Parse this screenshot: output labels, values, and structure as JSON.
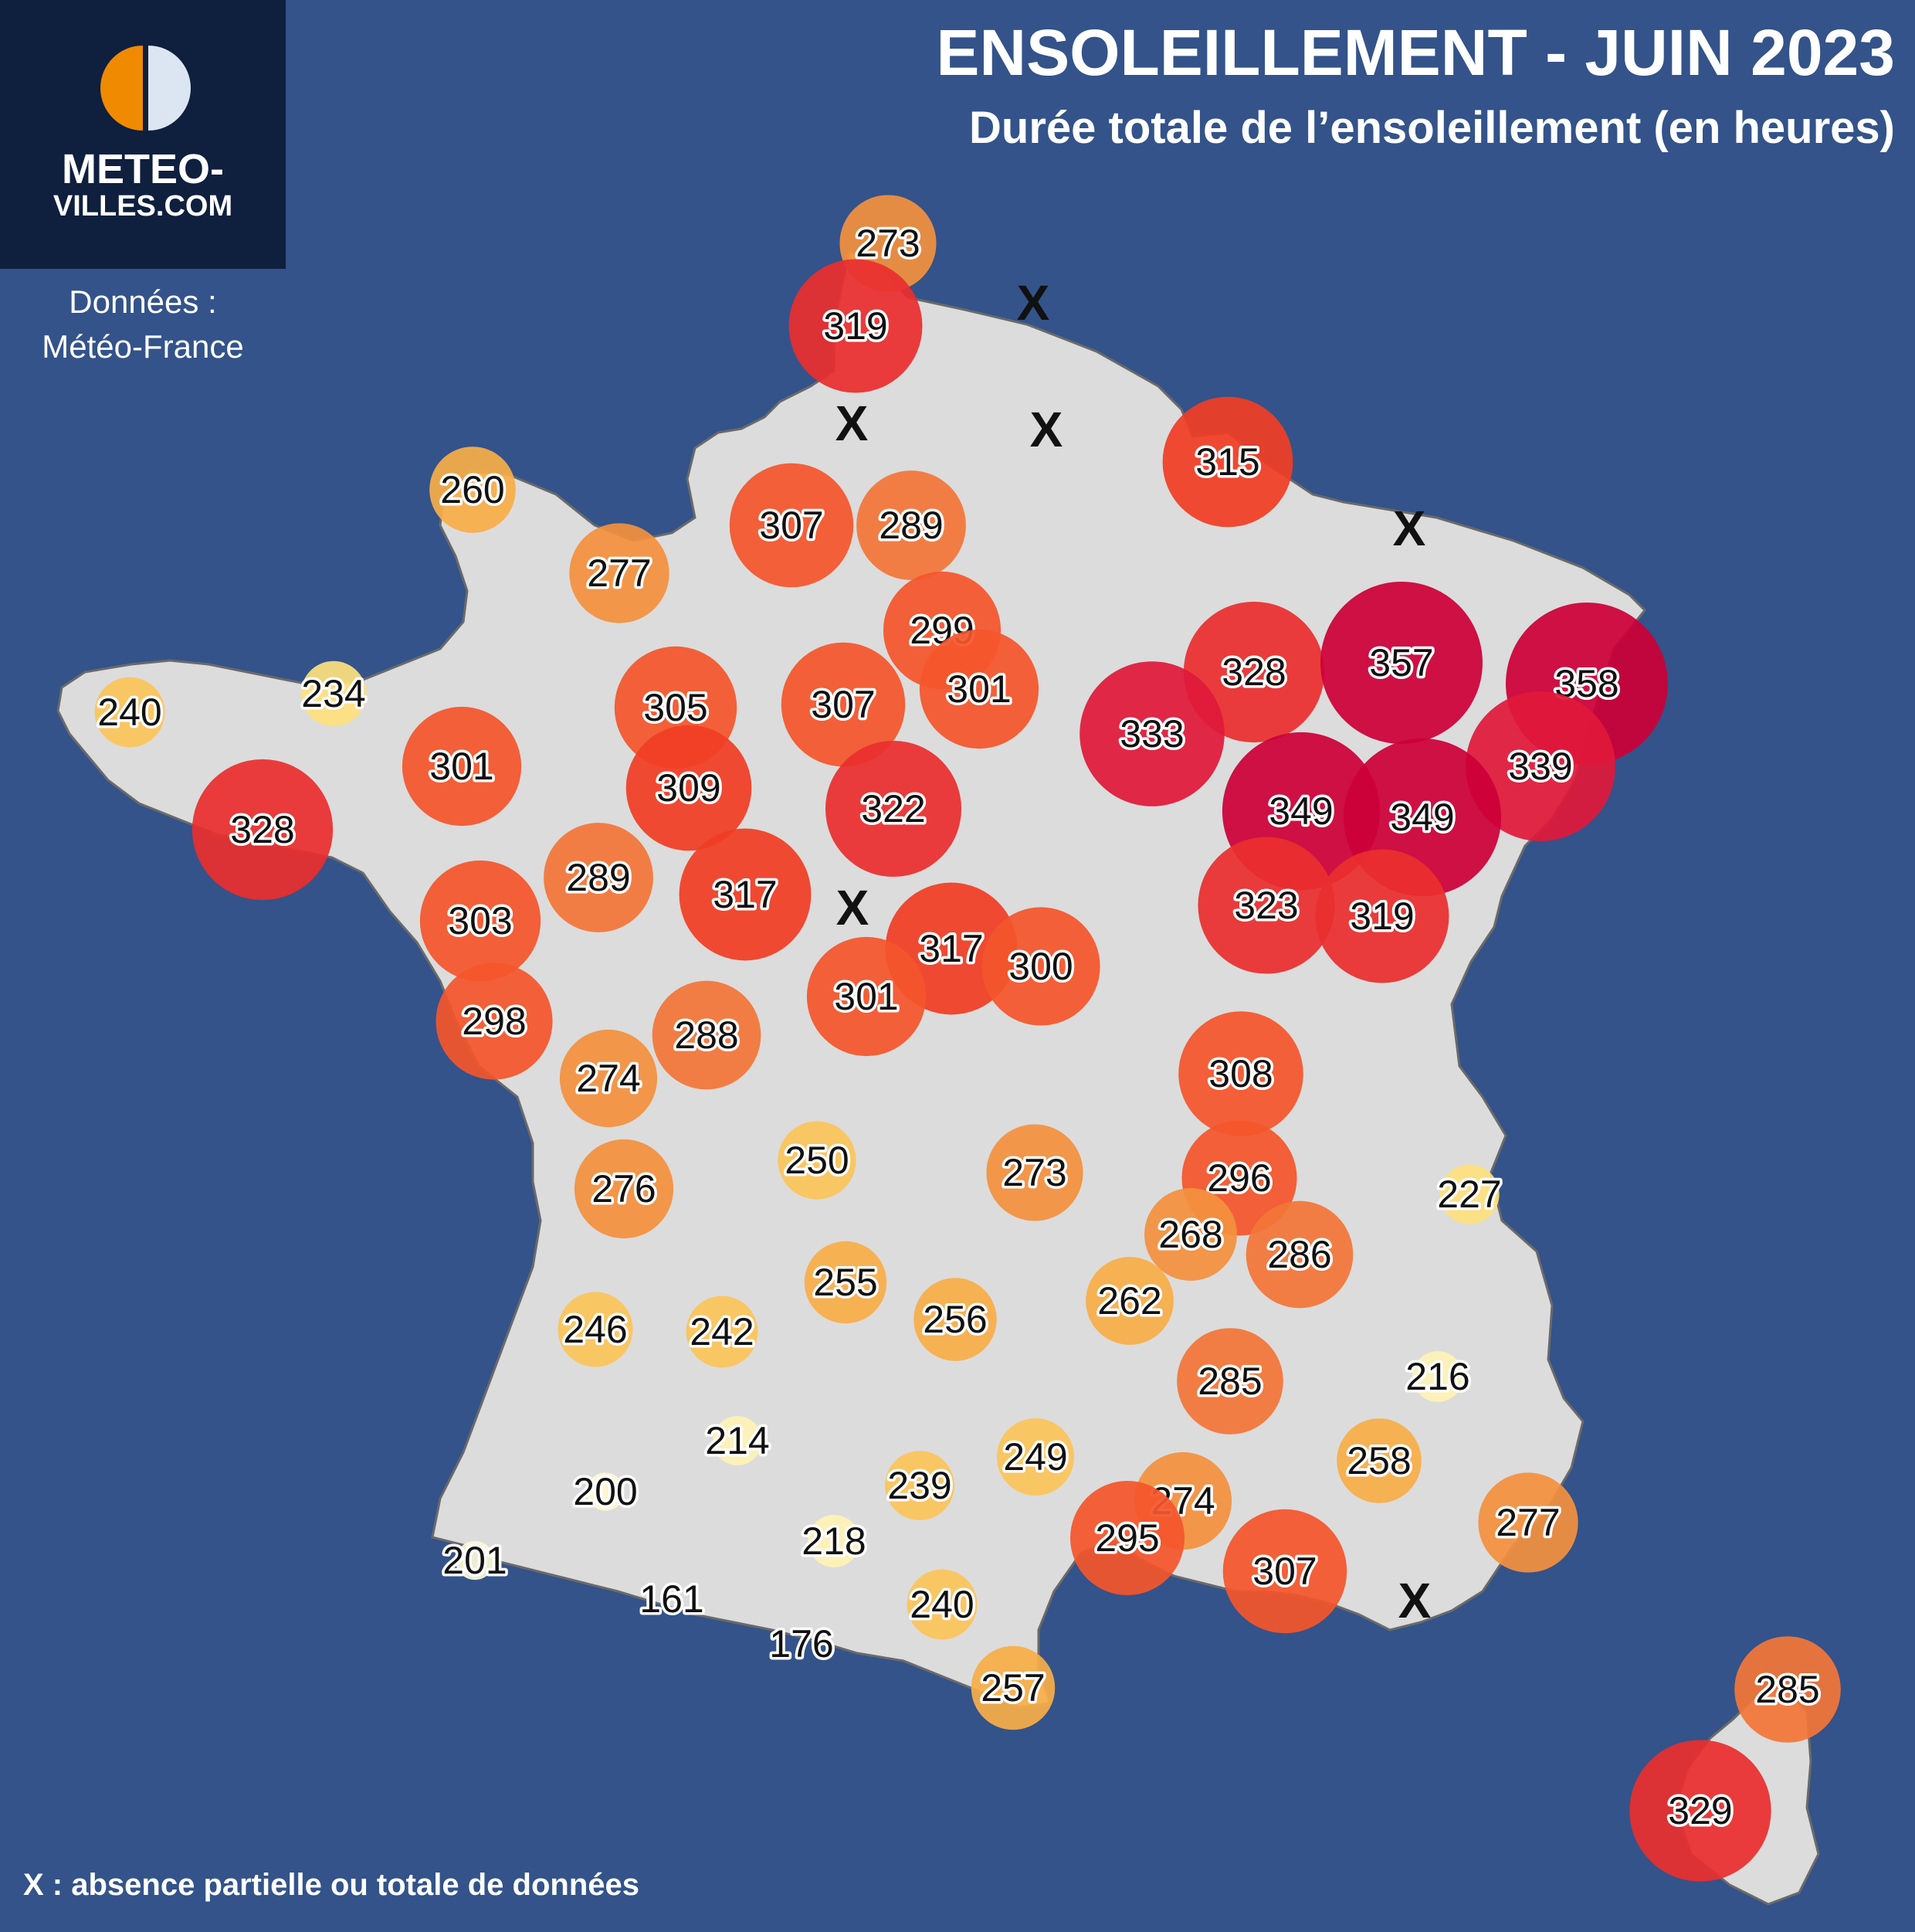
{
  "header": {
    "title": "ENSOLEILLEMENT - JUIN 2023",
    "subtitle": "Durée totale de l’ensoleillement (en heures)"
  },
  "logo": {
    "line1": "METEO-",
    "line2": "VILLES.COM"
  },
  "source": {
    "line1": "Données :",
    "line2": "Météo-France"
  },
  "footnote": "X : absence partielle ou totale de données",
  "colors": {
    "background": "#33538a",
    "land": "#dcdcdc",
    "logo_bg": "#0f1f3e",
    "logo_orange": "#f08a00",
    "logo_light": "#dce6f2"
  },
  "legend": {
    "missing_marker": "X"
  },
  "stations": [
    {
      "value": 273
    },
    {
      "value": 319
    },
    {
      "value": 260
    },
    {
      "value": 277
    },
    {
      "value": 307
    },
    {
      "value": 289
    },
    {
      "value": 315
    },
    {
      "value": 240
    },
    {
      "value": 234
    },
    {
      "value": 305
    },
    {
      "value": 299
    },
    {
      "value": 307
    },
    {
      "value": 301
    },
    {
      "value": 328
    },
    {
      "value": 357
    },
    {
      "value": 358
    },
    {
      "value": 301
    },
    {
      "value": 333
    },
    {
      "value": 309
    },
    {
      "value": 322
    },
    {
      "value": 339
    },
    {
      "value": 349
    },
    {
      "value": 349
    },
    {
      "value": 328
    },
    {
      "value": 289
    },
    {
      "value": 317
    },
    {
      "value": 303
    },
    {
      "value": 323
    },
    {
      "value": 319
    },
    {
      "value": 317
    },
    {
      "value": 300
    },
    {
      "value": 301
    },
    {
      "value": 298
    },
    {
      "value": 288
    },
    {
      "value": 274
    },
    {
      "value": 308
    },
    {
      "value": 250
    },
    {
      "value": 273
    },
    {
      "value": 296
    },
    {
      "value": 276
    },
    {
      "value": 227
    },
    {
      "value": 268
    },
    {
      "value": 286
    },
    {
      "value": 255
    },
    {
      "value": 262
    },
    {
      "value": 246
    },
    {
      "value": 242
    },
    {
      "value": 256
    },
    {
      "value": 285
    },
    {
      "value": 216
    },
    {
      "value": 214
    },
    {
      "value": 249
    },
    {
      "value": 258
    },
    {
      "value": 239
    },
    {
      "value": 200
    },
    {
      "value": 274
    },
    {
      "value": 277
    },
    {
      "value": 295
    },
    {
      "value": 218
    },
    {
      "value": 307
    },
    {
      "value": 201
    },
    {
      "value": 161
    },
    {
      "value": 240
    },
    {
      "value": 176
    },
    {
      "value": 257
    },
    {
      "value": 285
    },
    {
      "value": 329
    }
  ]
}
